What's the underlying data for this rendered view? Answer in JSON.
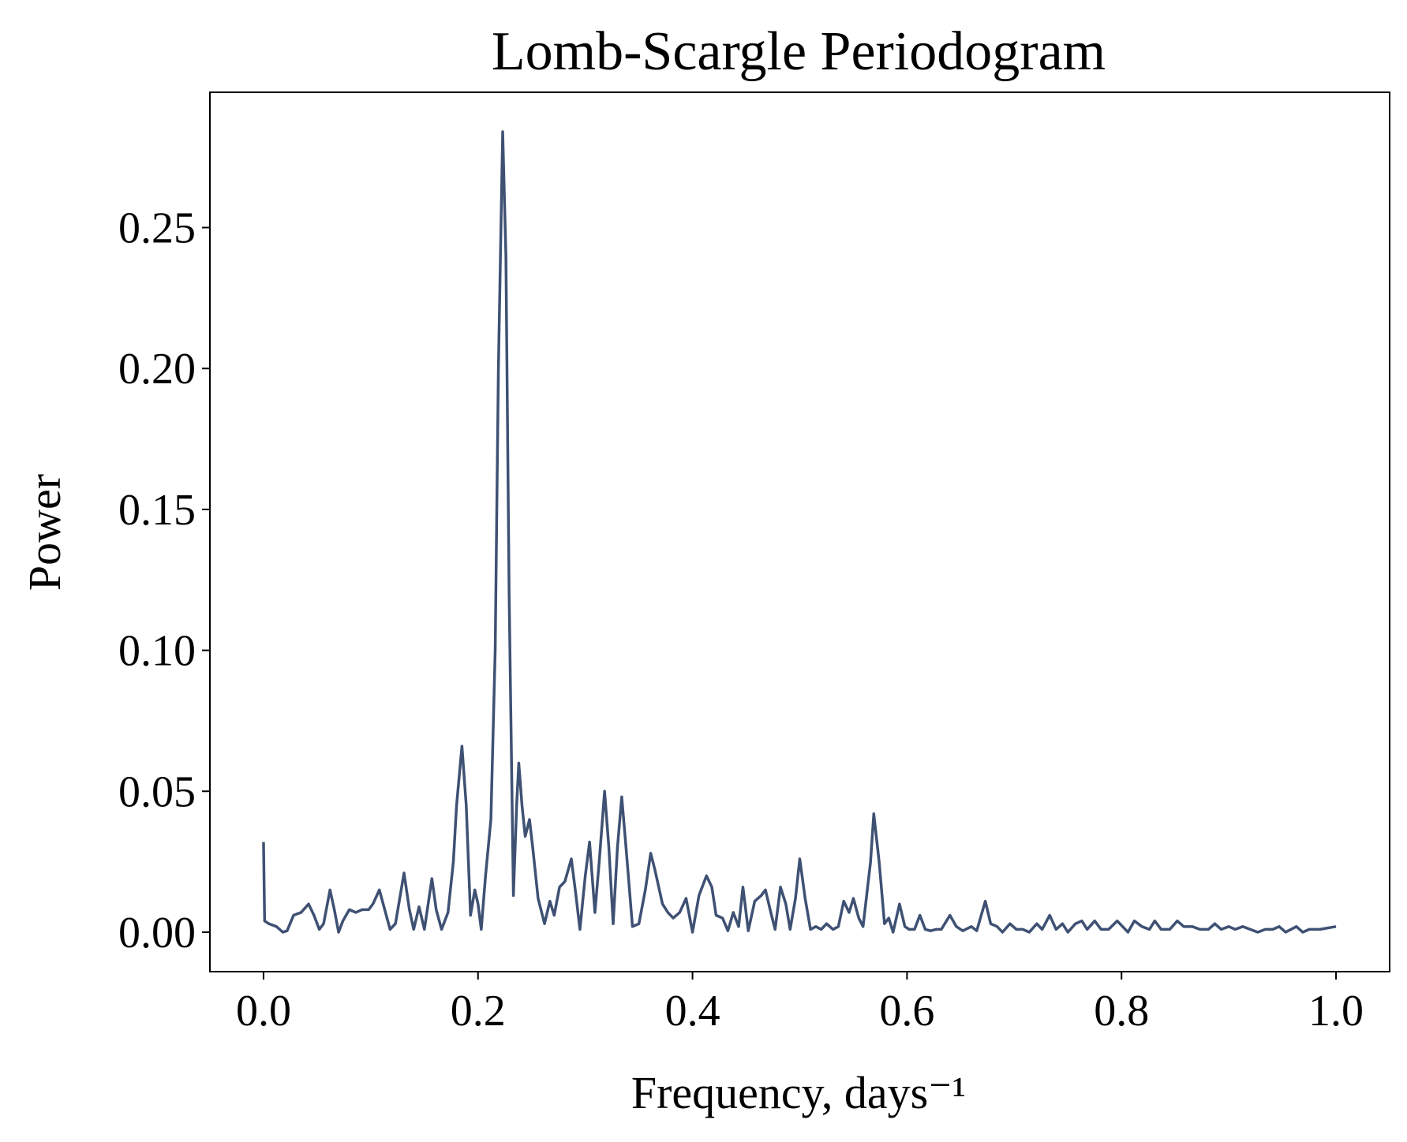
{
  "chart_data": {
    "type": "line",
    "title": "Lomb-Scargle Periodogram",
    "xlabel": "Frequency, days⁻¹",
    "ylabel": "Power",
    "x": [
      0.0,
      0.001,
      0.005,
      0.012,
      0.018,
      0.022,
      0.028,
      0.035,
      0.042,
      0.047,
      0.052,
      0.056,
      0.062,
      0.066,
      0.07,
      0.074,
      0.08,
      0.086,
      0.092,
      0.098,
      0.102,
      0.108,
      0.113,
      0.118,
      0.123,
      0.131,
      0.136,
      0.14,
      0.145,
      0.15,
      0.157,
      0.161,
      0.166,
      0.172,
      0.177,
      0.18,
      0.185,
      0.189,
      0.193,
      0.197,
      0.2,
      0.203,
      0.207,
      0.212,
      0.216,
      0.219,
      0.223,
      0.226,
      0.229,
      0.233,
      0.236,
      0.238,
      0.241,
      0.244,
      0.248,
      0.251,
      0.256,
      0.262,
      0.267,
      0.271,
      0.276,
      0.281,
      0.287,
      0.291,
      0.295,
      0.3,
      0.304,
      0.309,
      0.313,
      0.318,
      0.322,
      0.326,
      0.33,
      0.334,
      0.338,
      0.344,
      0.35,
      0.356,
      0.361,
      0.365,
      0.372,
      0.377,
      0.382,
      0.388,
      0.394,
      0.4,
      0.406,
      0.413,
      0.418,
      0.422,
      0.428,
      0.433,
      0.438,
      0.443,
      0.447,
      0.452,
      0.458,
      0.464,
      0.468,
      0.473,
      0.477,
      0.482,
      0.487,
      0.491,
      0.496,
      0.5,
      0.505,
      0.51,
      0.515,
      0.52,
      0.525,
      0.531,
      0.536,
      0.541,
      0.546,
      0.55,
      0.555,
      0.559,
      0.566,
      0.569,
      0.574,
      0.579,
      0.583,
      0.587,
      0.593,
      0.598,
      0.602,
      0.607,
      0.612,
      0.617,
      0.622,
      0.627,
      0.632,
      0.64,
      0.646,
      0.652,
      0.66,
      0.665,
      0.673,
      0.678,
      0.684,
      0.689,
      0.696,
      0.702,
      0.708,
      0.714,
      0.721,
      0.726,
      0.733,
      0.739,
      0.745,
      0.75,
      0.757,
      0.763,
      0.768,
      0.775,
      0.781,
      0.788,
      0.796,
      0.801,
      0.806,
      0.812,
      0.819,
      0.826,
      0.831,
      0.837,
      0.845,
      0.852,
      0.858,
      0.866,
      0.873,
      0.881,
      0.887,
      0.893,
      0.9,
      0.906,
      0.913,
      0.92,
      0.927,
      0.934,
      0.941,
      0.947,
      0.953,
      0.958,
      0.963,
      0.969,
      0.975,
      0.98,
      0.985,
      1.0
    ],
    "series": [
      {
        "color": "#3f5173",
        "values": [
          0.032,
          0.004,
          0.003,
          0.002,
          0.0,
          0.0005,
          0.006,
          0.007,
          0.01,
          0.006,
          0.001,
          0.003,
          0.015,
          0.008,
          0.0,
          0.004,
          0.008,
          0.007,
          0.008,
          0.008,
          0.01,
          0.015,
          0.008,
          0.001,
          0.003,
          0.021,
          0.008,
          0.001,
          0.009,
          0.001,
          0.019,
          0.008,
          0.001,
          0.007,
          0.025,
          0.045,
          0.066,
          0.045,
          0.006,
          0.015,
          0.01,
          0.001,
          0.02,
          0.04,
          0.1,
          0.2,
          0.284,
          0.24,
          0.12,
          0.013,
          0.045,
          0.06,
          0.045,
          0.034,
          0.04,
          0.03,
          0.012,
          0.003,
          0.011,
          0.006,
          0.016,
          0.018,
          0.026,
          0.014,
          0.001,
          0.02,
          0.032,
          0.007,
          0.025,
          0.05,
          0.03,
          0.003,
          0.03,
          0.048,
          0.03,
          0.002,
          0.003,
          0.015,
          0.028,
          0.022,
          0.01,
          0.007,
          0.005,
          0.007,
          0.012,
          0.0,
          0.013,
          0.02,
          0.016,
          0.006,
          0.005,
          0.0005,
          0.007,
          0.002,
          0.016,
          0.0005,
          0.011,
          0.013,
          0.015,
          0.007,
          0.001,
          0.016,
          0.01,
          0.001,
          0.012,
          0.026,
          0.012,
          0.001,
          0.002,
          0.001,
          0.003,
          0.001,
          0.002,
          0.011,
          0.007,
          0.012,
          0.005,
          0.002,
          0.025,
          0.042,
          0.025,
          0.003,
          0.005,
          0.0,
          0.01,
          0.002,
          0.001,
          0.001,
          0.006,
          0.001,
          0.0005,
          0.001,
          0.001,
          0.006,
          0.002,
          0.0005,
          0.002,
          0.0005,
          0.011,
          0.003,
          0.002,
          0.0,
          0.003,
          0.001,
          0.001,
          0.0,
          0.003,
          0.001,
          0.006,
          0.001,
          0.003,
          0.0,
          0.003,
          0.004,
          0.001,
          0.004,
          0.001,
          0.001,
          0.004,
          0.002,
          0.0,
          0.004,
          0.002,
          0.001,
          0.004,
          0.001,
          0.001,
          0.004,
          0.002,
          0.002,
          0.001,
          0.001,
          0.003,
          0.001,
          0.002,
          0.001,
          0.002,
          0.001,
          0.0,
          0.001,
          0.001,
          0.002,
          0.0,
          0.001,
          0.002,
          0.0,
          0.001,
          0.001,
          0.001,
          0.002
        ]
      }
    ],
    "xlim": [
      -0.05,
      1.05
    ],
    "xticks": [
      {
        "value": 0,
        "label": "0.0"
      },
      0.2,
      0.4,
      0.6,
      0.8,
      {
        "value": 1,
        "label": "1.0"
      }
    ],
    "ylim": [
      -0.014,
      0.298
    ],
    "yticks": [
      {
        "value": 0,
        "label": "0.00"
      },
      0.05,
      {
        "value": 0.1,
        "label": "0.10"
      },
      0.15,
      {
        "value": 0.2,
        "label": "0.20"
      },
      0.25
    ],
    "grid": false
  }
}
